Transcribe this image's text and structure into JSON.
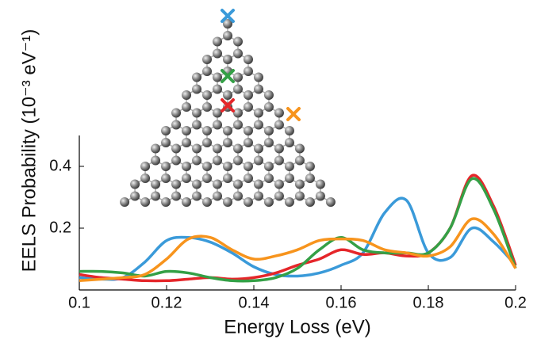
{
  "chart_data": {
    "type": "line",
    "x_label": "Energy Loss (eV)",
    "y_label": "EELS Probability (10⁻³ eV⁻¹)",
    "x": [
      0.1,
      0.105,
      0.11,
      0.115,
      0.12,
      0.125,
      0.13,
      0.135,
      0.14,
      0.145,
      0.15,
      0.155,
      0.16,
      0.165,
      0.17,
      0.175,
      0.18,
      0.185,
      0.19,
      0.195,
      0.2
    ],
    "series": [
      {
        "color": "#3a9ad9",
        "values": [
          0.04,
          0.035,
          0.04,
          0.09,
          0.16,
          0.17,
          0.155,
          0.12,
          0.075,
          0.05,
          0.045,
          0.055,
          0.08,
          0.12,
          0.25,
          0.29,
          0.12,
          0.105,
          0.2,
          0.155,
          0.08
        ]
      },
      {
        "color": "#e5262a",
        "values": [
          0.05,
          0.04,
          0.035,
          0.03,
          0.03,
          0.035,
          0.04,
          0.035,
          0.04,
          0.055,
          0.08,
          0.1,
          0.13,
          0.115,
          0.12,
          0.11,
          0.12,
          0.2,
          0.37,
          0.27,
          0.08
        ]
      },
      {
        "color": "#34a046",
        "values": [
          0.06,
          0.06,
          0.055,
          0.045,
          0.06,
          0.055,
          0.04,
          0.03,
          0.03,
          0.04,
          0.07,
          0.13,
          0.17,
          0.13,
          0.12,
          0.12,
          0.12,
          0.2,
          0.36,
          0.26,
          0.07
        ]
      },
      {
        "color": "#f7941d",
        "values": [
          0.03,
          0.035,
          0.04,
          0.05,
          0.1,
          0.165,
          0.17,
          0.13,
          0.1,
          0.11,
          0.13,
          0.16,
          0.165,
          0.16,
          0.13,
          0.12,
          0.11,
          0.14,
          0.23,
          0.18,
          0.07
        ]
      }
    ],
    "xlim": [
      0.1,
      0.2
    ],
    "xticks": [
      0.1,
      0.12,
      0.14,
      0.16,
      0.18,
      0.2
    ],
    "ylim": [
      0,
      0.5
    ],
    "yticks": [
      0.2,
      0.4
    ]
  }
}
